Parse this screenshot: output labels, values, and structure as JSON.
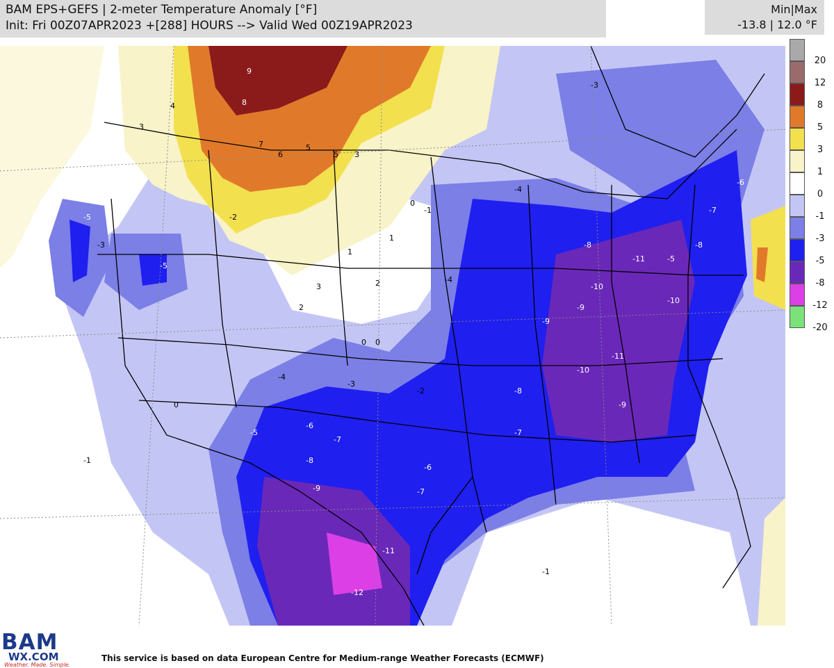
{
  "header": {
    "title": "BAM EPS+GEFS | 2-meter Temperature Anomaly [°F]",
    "subtitle": "Init: Fri 00Z07APR2023 +[288] HOURS --> Valid Wed 00Z19APR2023",
    "minmax_label": "Min|Max",
    "minmax_value": "-13.8 | 12.0 °F"
  },
  "legend": [
    {
      "label": "20",
      "color": "#a9a9a9"
    },
    {
      "label": "12",
      "color": "#9b6b6b"
    },
    {
      "label": "8",
      "color": "#8b1a1a"
    },
    {
      "label": "5",
      "color": "#e07a2a"
    },
    {
      "label": "3",
      "color": "#f3e04f"
    },
    {
      "label": "1",
      "color": "#f8f3c8"
    },
    {
      "label": "0",
      "color": "#ffffff"
    },
    {
      "label": "-1",
      "color": "#c3c6f5"
    },
    {
      "label": "-3",
      "color": "#7b7fe6"
    },
    {
      "label": "-5",
      "color": "#1f1ff0"
    },
    {
      "label": "-8",
      "color": "#6a28b8"
    },
    {
      "label": "-12",
      "color": "#dc3fe6"
    },
    {
      "label": "-20",
      "color": "#7be27b"
    }
  ],
  "map_labels": [
    "9",
    "8",
    "7",
    "6",
    "5",
    "5",
    "4",
    "3",
    "3",
    "3",
    "2",
    "2",
    "1",
    "1",
    "0",
    "0",
    "0",
    "0",
    "-1",
    "-1",
    "-1",
    "-2",
    "-2",
    "-3",
    "-3",
    "-3",
    "-4",
    "-4",
    "-4",
    "-5",
    "-5",
    "-5",
    "-5",
    "-6",
    "-6",
    "-6",
    "-7",
    "-7",
    "-7",
    "-7",
    "-8",
    "-8",
    "-8",
    "-8",
    "-9",
    "-9",
    "-9",
    "-9",
    "-10",
    "-10",
    "-10",
    "-11",
    "-11",
    "-11",
    "-12"
  ],
  "logo": {
    "big": "BAM",
    "wx": "WX.COM",
    "tag": "Weather. Made. Simple."
  },
  "footer": {
    "credit": "This service is based on data European Centre for Medium-range Weather Forecasts (ECMWF)"
  }
}
